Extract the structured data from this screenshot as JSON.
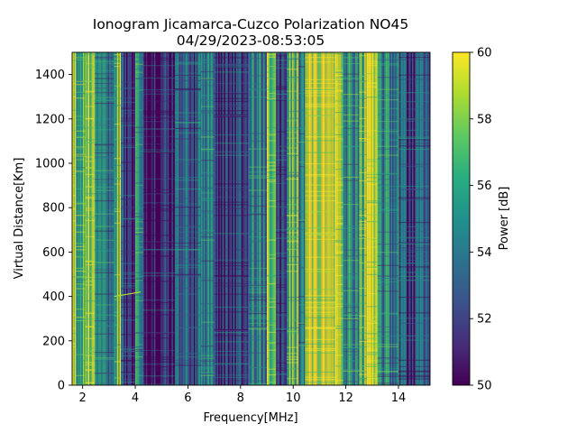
{
  "chart_data": {
    "type": "heatmap",
    "title": "Ionogram Jicamarca-Cuzco Polarization NO45",
    "subtitle": "04/29/2023-08:53:05",
    "xlabel": "Frequency[MHz]",
    "ylabel": "Virtual Distance[Km]",
    "xlim": [
      1.6,
      15.2
    ],
    "ylim": [
      0,
      1500
    ],
    "xticks": [
      2,
      4,
      6,
      8,
      10,
      12,
      14
    ],
    "yticks": [
      0,
      200,
      400,
      600,
      800,
      1000,
      1200,
      1400
    ],
    "colorbar": {
      "label": "Power [dB]",
      "range": [
        50,
        60
      ],
      "ticks": [
        50,
        52,
        54,
        56,
        58,
        60
      ],
      "colormap": "viridis"
    },
    "bands": [
      {
        "from": 1.6,
        "to": 1.75,
        "level": 59
      },
      {
        "from": 1.75,
        "to": 2.1,
        "level": 57
      },
      {
        "from": 2.1,
        "to": 2.45,
        "level": 59.5
      },
      {
        "from": 2.45,
        "to": 3.2,
        "level": 54
      },
      {
        "from": 3.2,
        "to": 3.45,
        "level": 58
      },
      {
        "from": 3.45,
        "to": 4.0,
        "level": 52
      },
      {
        "from": 4.0,
        "to": 4.3,
        "level": 55
      },
      {
        "from": 4.3,
        "to": 5.5,
        "level": 51.5
      },
      {
        "from": 5.5,
        "to": 6.5,
        "level": 53
      },
      {
        "from": 6.5,
        "to": 7.0,
        "level": 54.5
      },
      {
        "from": 7.0,
        "to": 8.3,
        "level": 52
      },
      {
        "from": 8.3,
        "to": 9.0,
        "level": 54.5
      },
      {
        "from": 9.0,
        "to": 9.35,
        "level": 59
      },
      {
        "from": 9.35,
        "to": 9.75,
        "level": 52
      },
      {
        "from": 9.75,
        "to": 10.2,
        "level": 57
      },
      {
        "from": 10.2,
        "to": 10.45,
        "level": 54
      },
      {
        "from": 10.45,
        "to": 11.6,
        "level": 60
      },
      {
        "from": 11.6,
        "to": 11.9,
        "level": 59
      },
      {
        "from": 11.9,
        "to": 12.5,
        "level": 55
      },
      {
        "from": 12.5,
        "to": 12.8,
        "level": 57.5
      },
      {
        "from": 12.8,
        "to": 13.2,
        "level": 59
      },
      {
        "from": 13.2,
        "to": 14.0,
        "level": 54.5
      },
      {
        "from": 14.0,
        "to": 15.2,
        "level": 52.5
      }
    ],
    "trace": {
      "x": [
        3.2,
        4.2
      ],
      "y": [
        400,
        420
      ]
    }
  }
}
